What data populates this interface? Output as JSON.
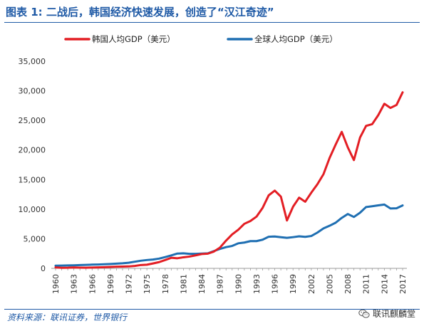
{
  "figure": {
    "title": "图表 1: 二战后，韩国经济快速发展，创造了“汉江奇迹”",
    "source": "资料来源：联讯证券，世界银行",
    "watermark": "联讯麒麟堂",
    "watermark_icon": "wechat-icon"
  },
  "chart_data": {
    "type": "line",
    "title": "",
    "xlabel": "",
    "ylabel": "",
    "ylim": [
      0,
      35000
    ],
    "yticks": [
      0,
      5000,
      10000,
      15000,
      20000,
      25000,
      30000,
      35000
    ],
    "ytick_labels": [
      "0",
      "5,000",
      "10,000",
      "15,000",
      "20,000",
      "25,000",
      "30,000",
      "35,000"
    ],
    "xlim": [
      1960,
      2017
    ],
    "xticks": [
      1960,
      1963,
      1966,
      1969,
      1972,
      1975,
      1978,
      1981,
      1984,
      1987,
      1990,
      1993,
      1996,
      1999,
      2002,
      2005,
      2008,
      2011,
      2014,
      2017
    ],
    "xtick_labels": [
      "1960",
      "1963",
      "1966",
      "1969",
      "1972",
      "1975",
      "1978",
      "1981",
      "1984",
      "1987",
      "1990",
      "1993",
      "1996",
      "1999",
      "2002",
      "2005",
      "2008",
      "2011",
      "2014",
      "2017"
    ],
    "grid": false,
    "legend": "top",
    "x": [
      1960,
      1961,
      1962,
      1963,
      1964,
      1965,
      1966,
      1967,
      1968,
      1969,
      1970,
      1971,
      1972,
      1973,
      1974,
      1975,
      1976,
      1977,
      1978,
      1979,
      1980,
      1981,
      1982,
      1983,
      1984,
      1985,
      1986,
      1987,
      1988,
      1989,
      1990,
      1991,
      1992,
      1993,
      1994,
      1995,
      1996,
      1997,
      1998,
      1999,
      2000,
      2001,
      2002,
      2003,
      2004,
      2005,
      2006,
      2007,
      2008,
      2009,
      2010,
      2011,
      2012,
      2013,
      2014,
      2015,
      2016,
      2017
    ],
    "series": [
      {
        "name": "韩国人均GDP（美元）",
        "color": "#e31e24",
        "values": [
          158,
          94,
          106,
          146,
          124,
          108,
          133,
          161,
          198,
          243,
          279,
          301,
          324,
          406,
          563,
          615,
          830,
          1052,
          1405,
          1783,
          1704,
          1870,
          1992,
          2198,
          2413,
          2482,
          2835,
          3510,
          4687,
          5737,
          6516,
          7524,
          8001,
          8740,
          10206,
          12333,
          13137,
          12131,
          8085,
          10409,
          11948,
          11253,
          12789,
          14209,
          15908,
          18640,
          20917,
          23062,
          20431,
          18292,
          22087,
          24080,
          24359,
          25890,
          27811,
          27105,
          27608,
          29743
        ]
      },
      {
        "name": "全球人均GDP（美元）",
        "color": "#1f6fb2",
        "values": [
          451,
          467,
          490,
          514,
          551,
          591,
          625,
          653,
          685,
          736,
          799,
          857,
          950,
          1121,
          1285,
          1406,
          1491,
          1645,
          1897,
          2183,
          2503,
          2537,
          2455,
          2455,
          2489,
          2543,
          2917,
          3278,
          3585,
          3783,
          4231,
          4361,
          4601,
          4599,
          4843,
          5344,
          5386,
          5259,
          5153,
          5269,
          5407,
          5317,
          5464,
          6044,
          6745,
          7196,
          7712,
          8528,
          9181,
          8681,
          9397,
          10363,
          10495,
          10647,
          10781,
          10118,
          10152,
          10634
        ]
      }
    ]
  }
}
